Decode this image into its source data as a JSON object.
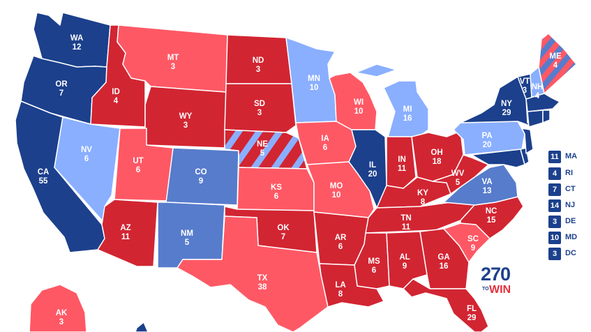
{
  "colors": {
    "safe_dem": "#1c408c",
    "likely_dem": "#577ccc",
    "lean_dem": "#8aafff",
    "safe_rep": "#d22532",
    "lean_rep": "#ff5865",
    "border": "#ffffff"
  },
  "states": {
    "WA": {
      "abbr": "WA",
      "ev": "12"
    },
    "OR": {
      "abbr": "OR",
      "ev": "7"
    },
    "CA": {
      "abbr": "CA",
      "ev": "55"
    },
    "ID": {
      "abbr": "ID",
      "ev": "4"
    },
    "NV": {
      "abbr": "NV",
      "ev": "6"
    },
    "MT": {
      "abbr": "MT",
      "ev": "3"
    },
    "WY": {
      "abbr": "WY",
      "ev": "3"
    },
    "UT": {
      "abbr": "UT",
      "ev": "6"
    },
    "AZ": {
      "abbr": "AZ",
      "ev": "11"
    },
    "CO": {
      "abbr": "CO",
      "ev": "9"
    },
    "NM": {
      "abbr": "NM",
      "ev": "5"
    },
    "ND": {
      "abbr": "ND",
      "ev": "3"
    },
    "SD": {
      "abbr": "SD",
      "ev": "3"
    },
    "NE": {
      "abbr": "NE",
      "ev": "5"
    },
    "KS": {
      "abbr": "KS",
      "ev": "6"
    },
    "OK": {
      "abbr": "OK",
      "ev": "7"
    },
    "TX": {
      "abbr": "TX",
      "ev": "38"
    },
    "MN": {
      "abbr": "MN",
      "ev": "10"
    },
    "IA": {
      "abbr": "IA",
      "ev": "6"
    },
    "MO": {
      "abbr": "MO",
      "ev": "10"
    },
    "AR": {
      "abbr": "AR",
      "ev": "6"
    },
    "LA": {
      "abbr": "LA",
      "ev": "8"
    },
    "WI": {
      "abbr": "WI",
      "ev": "10"
    },
    "IL": {
      "abbr": "IL",
      "ev": "20"
    },
    "MI": {
      "abbr": "MI",
      "ev": "16"
    },
    "IN": {
      "abbr": "IN",
      "ev": "11"
    },
    "OH": {
      "abbr": "OH",
      "ev": "18"
    },
    "KY": {
      "abbr": "KY",
      "ev": "8"
    },
    "TN": {
      "abbr": "TN",
      "ev": "11"
    },
    "MS": {
      "abbr": "MS",
      "ev": "6"
    },
    "AL": {
      "abbr": "AL",
      "ev": "9"
    },
    "GA": {
      "abbr": "GA",
      "ev": "16"
    },
    "FL": {
      "abbr": "FL",
      "ev": "29"
    },
    "SC": {
      "abbr": "SC",
      "ev": "9"
    },
    "NC": {
      "abbr": "NC",
      "ev": "15"
    },
    "VA": {
      "abbr": "VA",
      "ev": "13"
    },
    "WV": {
      "abbr": "WV",
      "ev": "5"
    },
    "PA": {
      "abbr": "PA",
      "ev": "20"
    },
    "NY": {
      "abbr": "NY",
      "ev": "29"
    },
    "VT": {
      "abbr": "VT",
      "ev": "3"
    },
    "NH": {
      "abbr": "NH",
      "ev": "4"
    },
    "ME": {
      "abbr": "ME",
      "ev": "4"
    },
    "AK": {
      "abbr": "AK",
      "ev": "3"
    }
  },
  "small_states": [
    {
      "ev": "11",
      "abbr": "MA"
    },
    {
      "ev": "4",
      "abbr": "RI"
    },
    {
      "ev": "7",
      "abbr": "CT"
    },
    {
      "ev": "14",
      "abbr": "NJ"
    },
    {
      "ev": "3",
      "abbr": "DE"
    },
    {
      "ev": "10",
      "abbr": "MD"
    },
    {
      "ev": "3",
      "abbr": "DC"
    }
  ],
  "logo": {
    "number": "270",
    "to": "TO",
    "win": "WIN"
  }
}
